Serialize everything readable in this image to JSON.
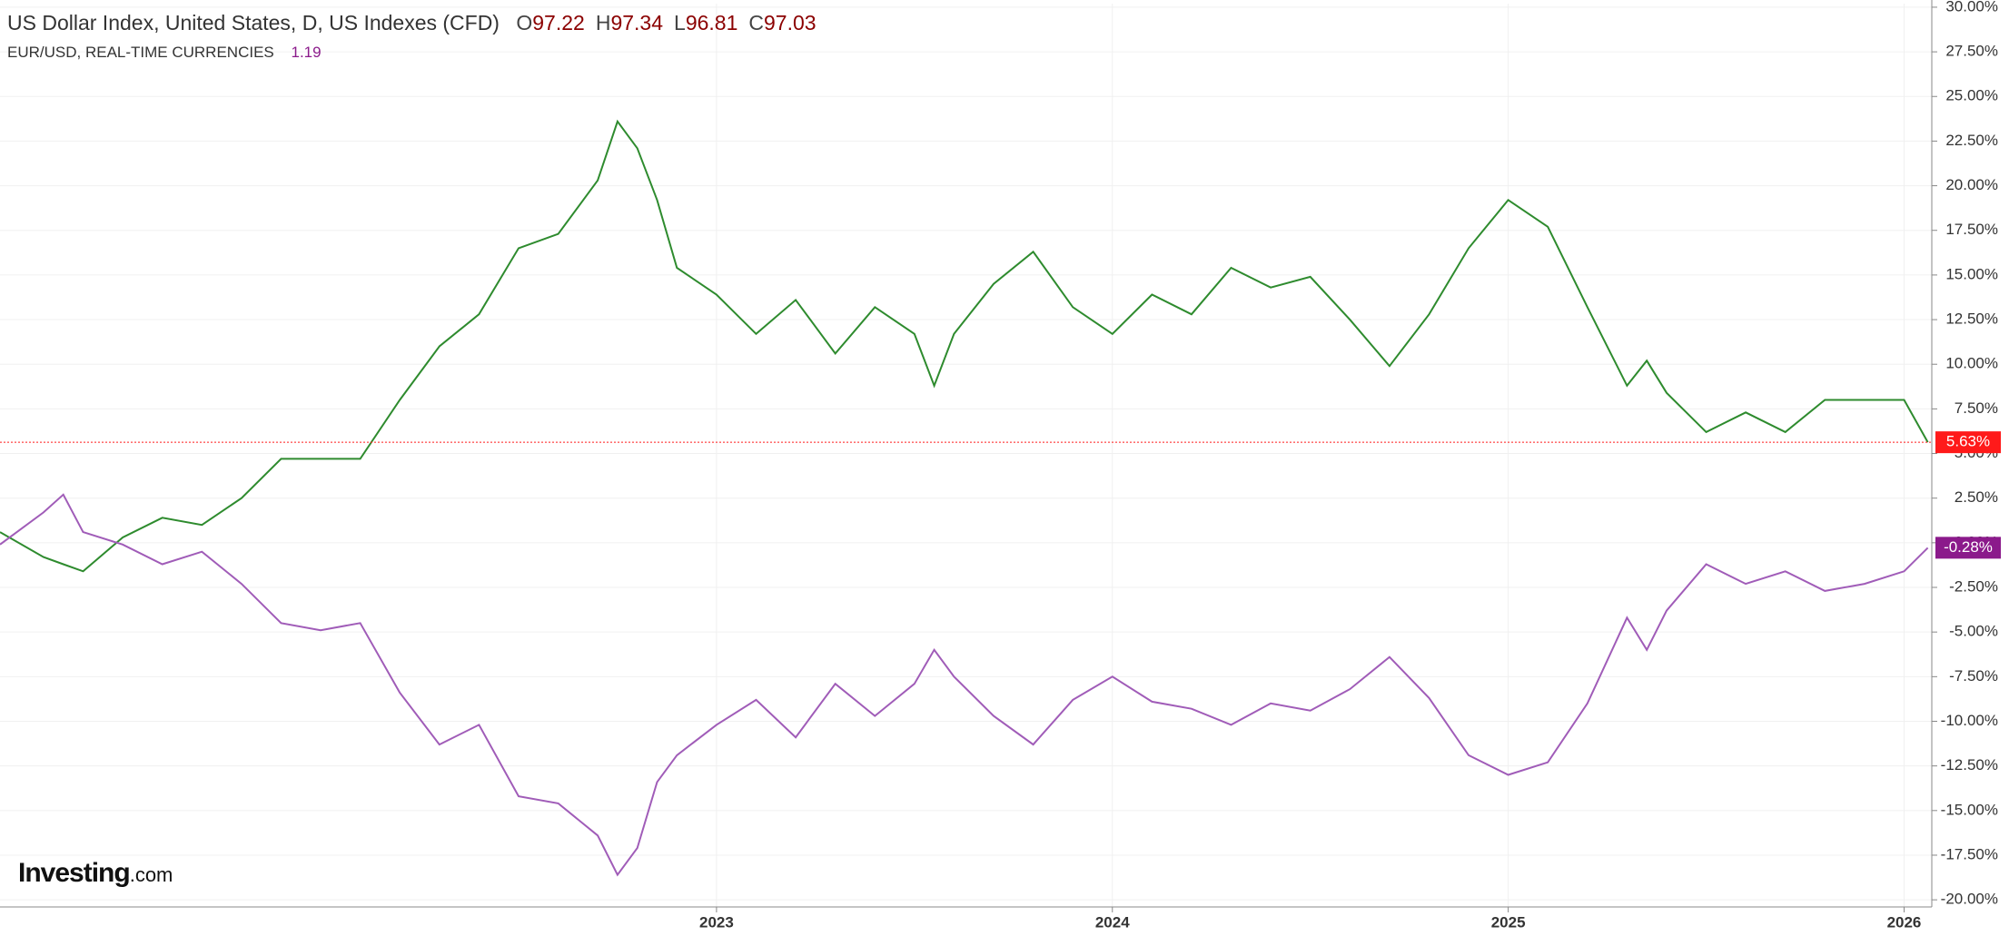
{
  "chart_data": {
    "type": "line",
    "header": {
      "title": "US Dollar Index, United States, D, US Indexes (CFD)",
      "ohlc": [
        {
          "label": "O",
          "value": 97.22
        },
        {
          "label": "H",
          "value": 97.34
        },
        {
          "label": "L",
          "value": 96.81
        },
        {
          "label": "C",
          "value": 97.03
        }
      ],
      "compare_title": "EUR/USD, REAL-TIME CURRENCIES",
      "compare_value": 1.19
    },
    "watermark": {
      "brand": "Investing",
      "suffix": ".com"
    },
    "x": [
      2021.19,
      2021.3,
      2021.35,
      2021.4,
      2021.5,
      2021.6,
      2021.7,
      2021.8,
      2021.9,
      2022.0,
      2022.1,
      2022.2,
      2022.3,
      2022.4,
      2022.5,
      2022.6,
      2022.7,
      2022.75,
      2022.8,
      2022.85,
      2022.9,
      2023.0,
      2023.1,
      2023.2,
      2023.3,
      2023.4,
      2023.5,
      2023.55,
      2023.6,
      2023.7,
      2023.8,
      2023.9,
      2024.0,
      2024.1,
      2024.2,
      2024.3,
      2024.4,
      2024.5,
      2024.6,
      2024.7,
      2024.8,
      2024.9,
      2025.0,
      2025.1,
      2025.2,
      2025.3,
      2025.35,
      2025.4,
      2025.5,
      2025.6,
      2025.7,
      2025.8,
      2025.9,
      2026.0,
      2026.06
    ],
    "series": [
      {
        "name": "US Dollar Index",
        "color": "#2e8b2e",
        "badge_color": "#ff1a1a",
        "values": [
          0.6,
          -0.8,
          -1.2,
          -1.6,
          0.3,
          1.4,
          1.0,
          2.5,
          4.7,
          4.7,
          4.7,
          8.0,
          11.0,
          12.8,
          16.5,
          17.3,
          20.3,
          23.6,
          22.1,
          19.2,
          15.4,
          13.9,
          11.7,
          13.6,
          10.6,
          13.2,
          11.7,
          8.8,
          11.7,
          14.5,
          16.3,
          13.2,
          11.7,
          13.9,
          12.8,
          15.4,
          14.3,
          14.9,
          12.5,
          9.9,
          12.8,
          16.5,
          19.2,
          17.7,
          13.2,
          8.8,
          10.2,
          8.4,
          6.2,
          7.3,
          6.2,
          8.0,
          8.0,
          8.0,
          5.63
        ],
        "value_labels": [
          null,
          null,
          null,
          null,
          null,
          null,
          null,
          null,
          null,
          null,
          null,
          null,
          null,
          null,
          null,
          null,
          null,
          null,
          null,
          null,
          null,
          null,
          null,
          null,
          null,
          null,
          null,
          null,
          null,
          null,
          null,
          null,
          null,
          null,
          null,
          null,
          null,
          null,
          null,
          null,
          null,
          null,
          null,
          null,
          null,
          null,
          null,
          null,
          null,
          null,
          null,
          null,
          null,
          null,
          "5.63%"
        ]
      },
      {
        "name": "EUR/USD",
        "color": "#a05cb8",
        "badge_color": "#8b1a8b",
        "values": [
          -0.1,
          1.7,
          2.7,
          0.6,
          -0.1,
          -1.2,
          -0.5,
          -2.3,
          -4.5,
          -4.9,
          -4.5,
          -8.4,
          -11.3,
          -10.2,
          -14.2,
          -14.6,
          -16.4,
          -18.6,
          -17.1,
          -13.4,
          -11.9,
          -10.2,
          -8.8,
          -10.9,
          -7.9,
          -9.7,
          -7.9,
          -6.0,
          -7.5,
          -9.7,
          -11.3,
          -8.8,
          -7.5,
          -8.9,
          -9.3,
          -10.2,
          -9.0,
          -9.4,
          -8.2,
          -6.4,
          -8.7,
          -11.9,
          -13.0,
          -12.3,
          -9.0,
          -4.2,
          -6.0,
          -3.8,
          -1.2,
          -2.3,
          -1.6,
          -2.7,
          -2.3,
          -1.6,
          -0.28
        ],
        "value_labels": [
          null,
          null,
          null,
          null,
          null,
          null,
          null,
          null,
          null,
          null,
          null,
          null,
          null,
          null,
          null,
          null,
          null,
          null,
          null,
          null,
          null,
          null,
          null,
          null,
          null,
          null,
          null,
          null,
          null,
          null,
          null,
          null,
          null,
          null,
          null,
          null,
          null,
          null,
          null,
          null,
          null,
          null,
          null,
          null,
          null,
          null,
          null,
          null,
          null,
          null,
          null,
          null,
          null,
          null,
          "-0.28%"
        ]
      }
    ],
    "xlim": [
      2021.19,
      2026.07
    ],
    "xticks": [
      2023,
      2024,
      2025,
      2026
    ],
    "ylim": [
      -20.4,
      30.2
    ],
    "yticks": [
      {
        "value": 30,
        "label": "30.00%"
      },
      {
        "value": 27.5,
        "label": "27.50%"
      },
      {
        "value": 25,
        "label": "25.00%"
      },
      {
        "value": 22.5,
        "label": "22.50%"
      },
      {
        "value": 20,
        "label": "20.00%"
      },
      {
        "value": 17.5,
        "label": "17.50%"
      },
      {
        "value": 15,
        "label": "15.00%"
      },
      {
        "value": 12.5,
        "label": "12.50%"
      },
      {
        "value": 10,
        "label": "10.00%"
      },
      {
        "value": 7.5,
        "label": "7.50%"
      },
      {
        "value": 5,
        "label": "5.00%"
      },
      {
        "value": 2.5,
        "label": "2.50%"
      },
      {
        "value": 0,
        "label": "0.00%"
      },
      {
        "value": -2.5,
        "label": "-2.50%"
      },
      {
        "value": -5,
        "label": "-5.00%"
      },
      {
        "value": -7.5,
        "label": "-7.50%"
      },
      {
        "value": -10,
        "label": "-10.00%"
      },
      {
        "value": -12.5,
        "label": "-12.50%"
      },
      {
        "value": -15,
        "label": "-15.00%"
      },
      {
        "value": -17.5,
        "label": "-17.50%"
      },
      {
        "value": -20,
        "label": "-20.00%"
      }
    ],
    "grid": true
  }
}
